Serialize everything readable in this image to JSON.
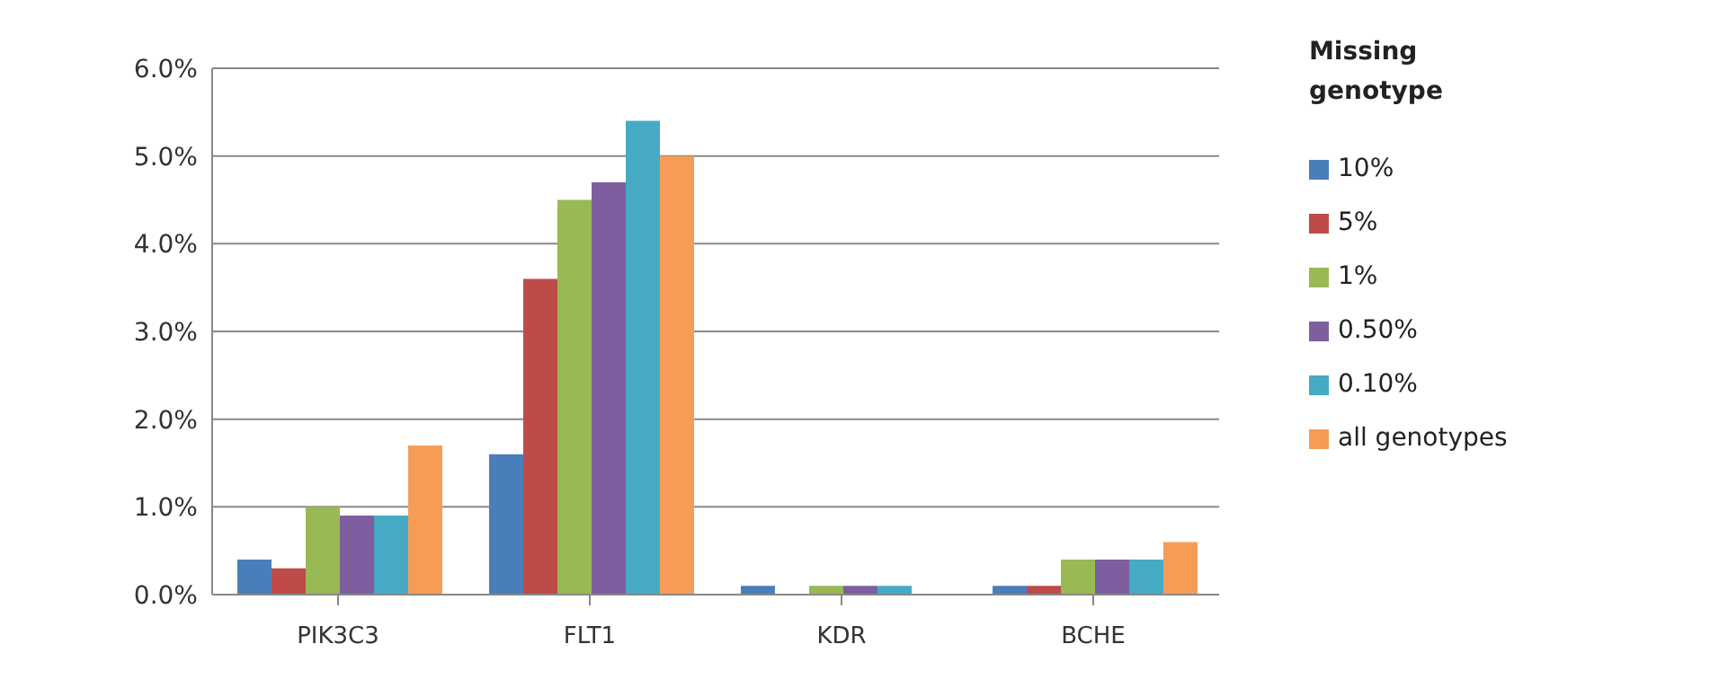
{
  "chart_data": {
    "type": "bar",
    "categories": [
      "PIK3C3",
      "FLT1",
      "KDR",
      "BCHE"
    ],
    "series": [
      {
        "name": "10%",
        "color": "#4a7ebb",
        "values": [
          0.4,
          1.6,
          0.1,
          0.1
        ]
      },
      {
        "name": "5%",
        "color": "#be4b48",
        "values": [
          0.3,
          3.6,
          0,
          0.1
        ]
      },
      {
        "name": "1%",
        "color": "#98b954",
        "values": [
          1.0,
          4.5,
          0.1,
          0.4
        ]
      },
      {
        "name": "0.50%",
        "color": "#7d5fa0",
        "values": [
          0.9,
          4.7,
          0.1,
          0.4
        ]
      },
      {
        "name": "0.10%",
        "color": "#46aac5",
        "values": [
          0.9,
          5.4,
          0.1,
          0.4
        ]
      },
      {
        "name": "all genotypes",
        "color": "#f59d56",
        "values": [
          1.7,
          5.0,
          0,
          0.6
        ]
      }
    ],
    "legend_title": "Missing genotype",
    "legend": "right",
    "ylim": [
      0,
      6
    ],
    "yticks": [
      {
        "value": 0,
        "label": "0.0%"
      },
      {
        "value": 1,
        "label": "1.0%"
      },
      {
        "value": 2,
        "label": "2.0%"
      },
      {
        "value": 3,
        "label": "3.0%"
      },
      {
        "value": 4,
        "label": "4.0%"
      },
      {
        "value": 5,
        "label": "5.0%"
      },
      {
        "value": 6,
        "label": "6.0%"
      }
    ],
    "grid": "y"
  }
}
